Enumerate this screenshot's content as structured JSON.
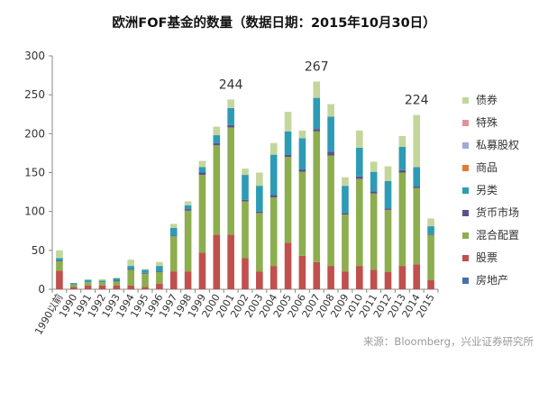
{
  "title": "欧洲FOF基金的数量（数据日期：2015年10月30日）",
  "source": "来源：Bloomberg，兴业证券研究所",
  "chart_data": {
    "type": "bar",
    "stacked": true,
    "categories": [
      "1990以前",
      "1990",
      "1991",
      "1992",
      "1993",
      "1994",
      "1995",
      "1996",
      "1997",
      "1998",
      "1999",
      "2000",
      "2001",
      "2002",
      "2003",
      "2004",
      "2005",
      "2006",
      "2007",
      "2008",
      "2009",
      "2010",
      "2011",
      "2012",
      "2013",
      "2014",
      "2015"
    ],
    "ylim": [
      0,
      300
    ],
    "yticks": [
      0,
      50,
      100,
      150,
      200,
      250,
      300
    ],
    "grid": false,
    "legend_position": "right",
    "series": [
      {
        "name": "房地产",
        "color": "#4572a7",
        "values": [
          0,
          0,
          0,
          0,
          0,
          0,
          0,
          0,
          0,
          0,
          0,
          0,
          0,
          0,
          0,
          0,
          0,
          0,
          0,
          0,
          0,
          0,
          0,
          0,
          0,
          0,
          0
        ]
      },
      {
        "name": "股票",
        "color": "#c0504d",
        "values": [
          24,
          3,
          5,
          5,
          5,
          5,
          3,
          7,
          23,
          23,
          47,
          70,
          70,
          40,
          23,
          30,
          60,
          43,
          35,
          30,
          23,
          30,
          25,
          22,
          30,
          32,
          12
        ]
      },
      {
        "name": "混合配置",
        "color": "#8cae4e",
        "values": [
          12,
          3,
          4,
          4,
          5,
          20,
          17,
          15,
          45,
          78,
          100,
          115,
          138,
          73,
          75,
          88,
          110,
          108,
          168,
          142,
          73,
          112,
          98,
          80,
          120,
          98,
          58
        ]
      },
      {
        "name": "货币市场",
        "color": "#5f4f8a",
        "values": [
          1,
          0,
          0,
          0,
          1,
          1,
          1,
          1,
          1,
          2,
          3,
          3,
          3,
          2,
          2,
          3,
          3,
          3,
          3,
          5,
          2,
          3,
          3,
          2,
          3,
          2,
          1
        ]
      },
      {
        "name": "另类",
        "color": "#2e9bb5",
        "values": [
          3,
          2,
          3,
          2,
          3,
          4,
          4,
          7,
          10,
          5,
          7,
          10,
          22,
          32,
          33,
          52,
          30,
          40,
          40,
          45,
          35,
          37,
          25,
          35,
          30,
          25,
          10
        ]
      },
      {
        "name": "商品",
        "color": "#e07b39",
        "values": [
          0,
          0,
          0,
          0,
          0,
          0,
          0,
          0,
          0,
          0,
          0,
          0,
          0,
          0,
          0,
          0,
          0,
          0,
          0,
          0,
          0,
          0,
          0,
          0,
          0,
          0,
          0
        ]
      },
      {
        "name": "私募股权",
        "color": "#a2a9d8",
        "values": [
          0,
          0,
          0,
          0,
          0,
          0,
          0,
          0,
          0,
          0,
          0,
          0,
          0,
          0,
          0,
          0,
          0,
          0,
          0,
          0,
          0,
          0,
          0,
          0,
          0,
          0,
          0
        ]
      },
      {
        "name": "特殊",
        "color": "#e58f98",
        "values": [
          0,
          0,
          0,
          0,
          0,
          0,
          0,
          0,
          0,
          0,
          0,
          0,
          0,
          0,
          0,
          0,
          0,
          0,
          0,
          0,
          0,
          0,
          0,
          0,
          0,
          0,
          0
        ]
      },
      {
        "name": "债券",
        "color": "#c3d69b",
        "values": [
          10,
          0,
          1,
          2,
          1,
          8,
          1,
          5,
          5,
          5,
          8,
          11,
          11,
          8,
          17,
          15,
          25,
          10,
          21,
          16,
          11,
          22,
          13,
          19,
          14,
          67,
          10
        ]
      }
    ],
    "annotations": [
      {
        "category": "2001",
        "label": "244"
      },
      {
        "category": "2007",
        "label": "267"
      },
      {
        "category": "2014",
        "label": "224"
      }
    ]
  }
}
